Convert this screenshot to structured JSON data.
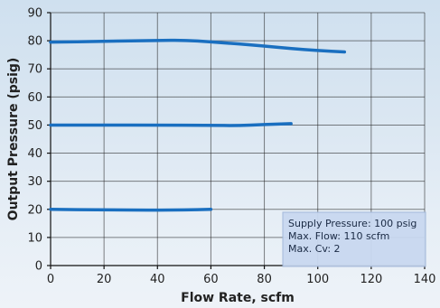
{
  "chart_data": {
    "type": "line",
    "xlabel": "Flow Rate, scfm",
    "ylabel": "Output Pressure (psig)",
    "xlim": [
      0,
      140
    ],
    "ylim": [
      0,
      90
    ],
    "x_ticks": [
      0,
      20,
      40,
      60,
      80,
      100,
      120,
      140
    ],
    "y_ticks": [
      0,
      10,
      20,
      30,
      40,
      50,
      60,
      70,
      80,
      90
    ],
    "grid": true,
    "series": [
      {
        "x": [
          0,
          20,
          40,
          50,
          60,
          70,
          80,
          90,
          100,
          110
        ],
        "y": [
          79.5,
          79.8,
          80.1,
          80.2,
          79.6,
          78.9,
          78.1,
          77.2,
          76.5,
          76.0
        ],
        "color": "#1a6fc0"
      },
      {
        "x": [
          0,
          20,
          40,
          60,
          70,
          80,
          90
        ],
        "y": [
          50.0,
          50.0,
          50.0,
          49.9,
          49.8,
          50.2,
          50.5
        ],
        "color": "#1a6fc0"
      },
      {
        "x": [
          0,
          20,
          40,
          50,
          60
        ],
        "y": [
          20.0,
          19.8,
          19.7,
          19.8,
          20.0
        ],
        "color": "#1a6fc0"
      }
    ],
    "annotation": {
      "lines": [
        "Supply Pressure: 100 psig",
        "Max. Flow: 110 scfm",
        "Max. Cv: 2"
      ]
    }
  }
}
